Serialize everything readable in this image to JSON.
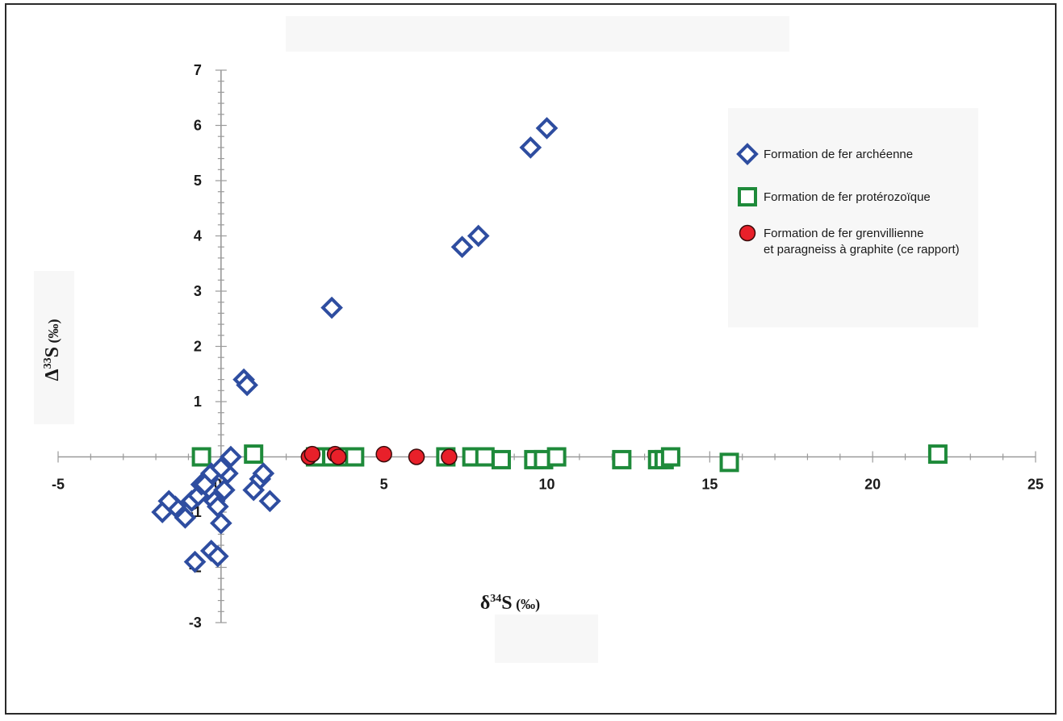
{
  "chart_data": {
    "type": "scatter",
    "xlabel": {
      "prefix": "δ",
      "sup": "34",
      "main": "S",
      "unit": " (‰)"
    },
    "ylabel": {
      "prefix": "Δ",
      "sup": "33",
      "main": "S",
      "unit": " (‰)"
    },
    "xlim": [
      -5,
      25
    ],
    "ylim": [
      -3,
      7
    ],
    "x_ticks": [
      "-5",
      "5",
      "10",
      "15",
      "20",
      "25"
    ],
    "x_zero_label": "0",
    "y_ticks": [
      "-3",
      "-2",
      "-1",
      "0",
      "1",
      "2",
      "3",
      "4",
      "5",
      "6",
      "7"
    ],
    "grid": false,
    "legend_position": "top-right",
    "series": [
      {
        "name": "Formation de fer archéenne",
        "marker": "diamond",
        "color": "#2e4da0",
        "x": [
          -1.8,
          -1.4,
          -1.6,
          -1.1,
          -0.9,
          -0.7,
          -0.6,
          -0.4,
          -0.3,
          -0.2,
          -0.1,
          0.0,
          0.1,
          0.2,
          0.3,
          0.0,
          -0.3,
          -0.1,
          -0.8,
          -0.5,
          1.0,
          1.2,
          1.3,
          1.5,
          0.7,
          0.8,
          3.4,
          7.4,
          7.9,
          9.5,
          10.0
        ],
        "y": [
          -1.0,
          -0.9,
          -0.8,
          -1.1,
          -0.8,
          -0.7,
          -0.5,
          -0.4,
          -0.3,
          -0.8,
          -0.9,
          -1.2,
          -0.6,
          -0.3,
          0.0,
          -0.2,
          -1.7,
          -1.8,
          -1.9,
          -0.5,
          -0.6,
          -0.4,
          -0.3,
          -0.8,
          1.4,
          1.3,
          2.7,
          3.8,
          4.0,
          5.6,
          5.95
        ]
      },
      {
        "name": "Formation de fer protérozoïque",
        "marker": "square",
        "color": "#1e8a3a",
        "x": [
          -0.6,
          1.0,
          2.9,
          3.4,
          3.8,
          4.1,
          6.9,
          7.7,
          8.1,
          8.6,
          9.6,
          9.9,
          10.3,
          12.3,
          13.4,
          13.6,
          13.8,
          15.6,
          22.0
        ],
        "y": [
          0.0,
          0.05,
          0.0,
          0.0,
          0.0,
          0.0,
          0.0,
          0.0,
          0.0,
          -0.05,
          -0.05,
          -0.05,
          0.0,
          -0.05,
          -0.05,
          -0.05,
          0.0,
          -0.1,
          0.05
        ]
      },
      {
        "name": "Formation de fer grenvillienne\net paragneiss à graphite (ce rapport)",
        "marker": "circle",
        "color": "#e8202a",
        "x": [
          2.7,
          2.8,
          3.5,
          3.6,
          5.0,
          6.0,
          7.0
        ],
        "y": [
          0.0,
          0.05,
          0.05,
          0.0,
          0.05,
          0.0,
          0.0
        ]
      }
    ],
    "legend": [
      {
        "label_lines": [
          "Formation de fer archéenne"
        ]
      },
      {
        "label_lines": [
          "Formation de fer protérozoïque"
        ]
      },
      {
        "label_lines": [
          "Formation de fer grenvillienne",
          "et paragneiss à graphite (ce rapport)"
        ]
      }
    ]
  }
}
